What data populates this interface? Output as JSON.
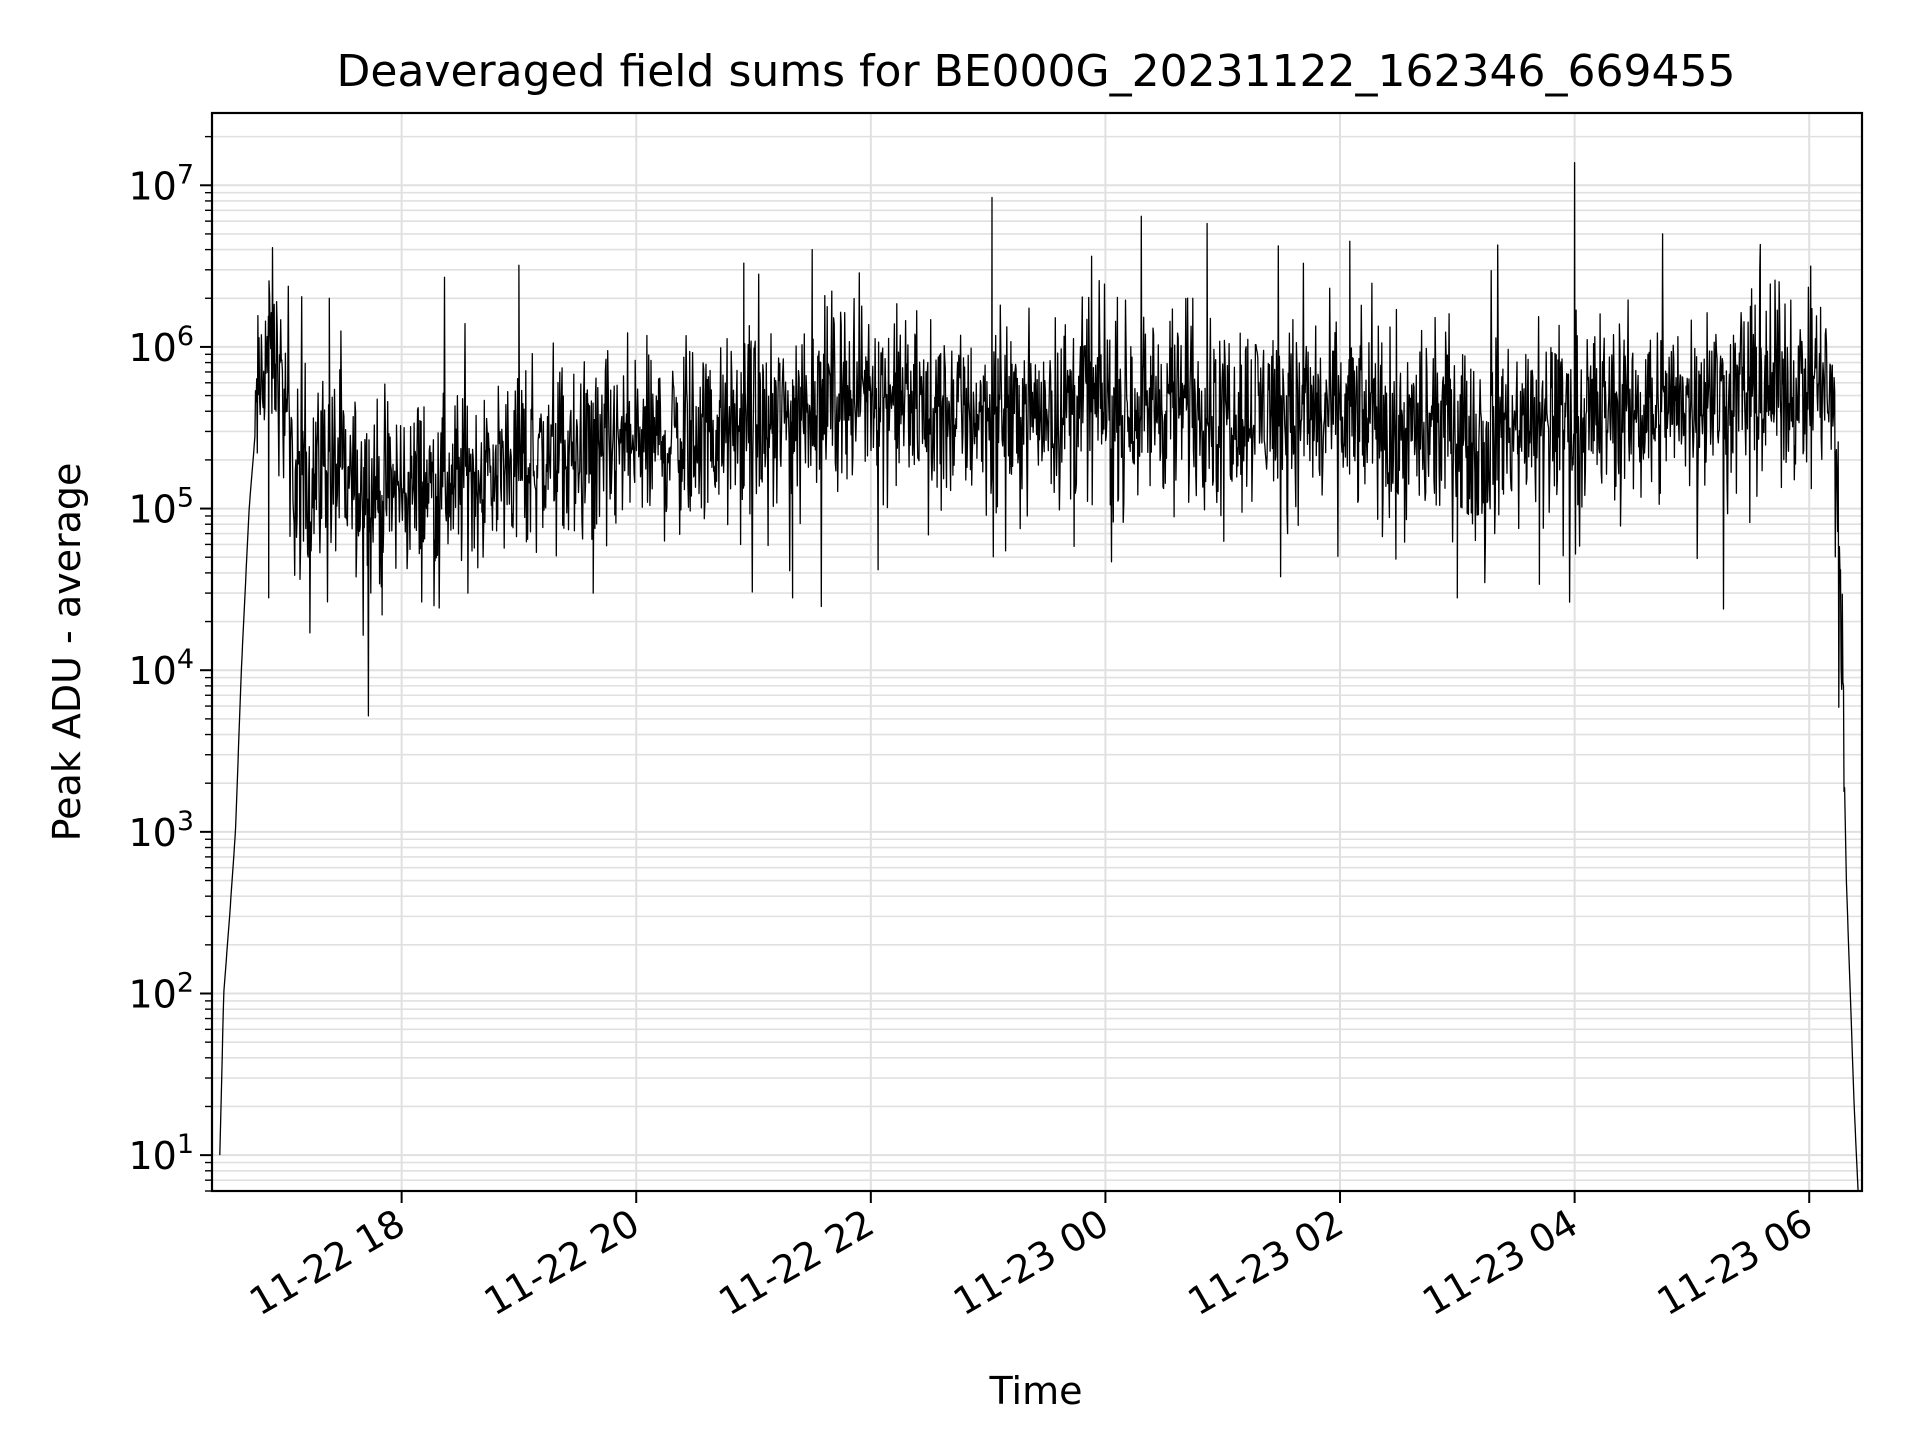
{
  "chart_data": {
    "type": "line",
    "title": "Deaveraged field sums for BE000G_20231122_162346_669455",
    "xlabel": "Time",
    "ylabel": "Peak ADU - average",
    "yscale": "log",
    "ylim": [
      6,
      28000000
    ],
    "xlim": [
      "2023-11-22 16:23",
      "2023-11-23 06:27"
    ],
    "grid": true,
    "line_color": "#000000",
    "grid_color": "#e0e0e0",
    "x_ticks": [
      {
        "value": "2023-11-22 18:00",
        "label": "11-22 18"
      },
      {
        "value": "2023-11-22 20:00",
        "label": "11-22 20"
      },
      {
        "value": "2023-11-22 22:00",
        "label": "11-22 22"
      },
      {
        "value": "2023-11-23 00:00",
        "label": "11-23 00"
      },
      {
        "value": "2023-11-23 02:00",
        "label": "11-23 02"
      },
      {
        "value": "2023-11-23 04:00",
        "label": "11-23 04"
      },
      {
        "value": "2023-11-23 06:00",
        "label": "11-23 06"
      }
    ],
    "y_ticks": [
      {
        "value": 10,
        "base": "10",
        "exp": "1"
      },
      {
        "value": 100,
        "base": "10",
        "exp": "2"
      },
      {
        "value": 1000,
        "base": "10",
        "exp": "3"
      },
      {
        "value": 10000,
        "base": "10",
        "exp": "4"
      },
      {
        "value": 100000,
        "base": "10",
        "exp": "5"
      },
      {
        "value": 1000000,
        "base": "10",
        "exp": "6"
      },
      {
        "value": 10000000,
        "base": "10",
        "exp": "7"
      }
    ],
    "series": [
      {
        "x": [
          "2023-11-22 16:27",
          "2023-11-22 16:29",
          "2023-11-22 16:32",
          "2023-11-22 16:35",
          "2023-11-22 16:38",
          "2023-11-22 16:42",
          "2023-11-22 16:46",
          "2023-11-22 16:50",
          "2023-11-22 16:54",
          "2023-11-22 16:58",
          "2023-11-22 17:02",
          "2023-11-22 17:06",
          "2023-11-22 17:10",
          "2023-11-22 17:15",
          "2023-11-22 17:20",
          "2023-11-22 17:30",
          "2023-11-22 17:40",
          "2023-11-22 17:50",
          "2023-11-22 18:00",
          "2023-11-22 18:30",
          "2023-11-22 19:00",
          "2023-11-22 19:30",
          "2023-11-22 20:00",
          "2023-11-22 20:30",
          "2023-11-22 21:00",
          "2023-11-22 21:15",
          "2023-11-22 21:30",
          "2023-11-22 22:00",
          "2023-11-22 22:30",
          "2023-11-22 23:00",
          "2023-11-22 23:30",
          "2023-11-23 00:00",
          "2023-11-23 00:30",
          "2023-11-23 01:00",
          "2023-11-23 01:30",
          "2023-11-23 02:00",
          "2023-11-23 02:30",
          "2023-11-23 03:00",
          "2023-11-23 03:30",
          "2023-11-23 04:00",
          "2023-11-23 04:30",
          "2023-11-23 05:00",
          "2023-11-23 05:30",
          "2023-11-23 06:00",
          "2023-11-23 06:10",
          "2023-11-23 06:14",
          "2023-11-23 06:17",
          "2023-11-23 06:19",
          "2023-11-23 06:21",
          "2023-11-23 06:23",
          "2023-11-23 06:25"
        ],
        "y": [
          10,
          100,
          300,
          1000,
          10000,
          100000,
          400000,
          900000,
          1000000,
          600000,
          300000,
          120000,
          150000,
          180000,
          200000,
          150000,
          130000,
          120000,
          130000,
          150000,
          200000,
          200000,
          250000,
          280000,
          300000,
          350000,
          500000,
          550000,
          400000,
          400000,
          420000,
          450000,
          450000,
          450000,
          400000,
          380000,
          300000,
          280000,
          300000,
          400000,
          420000,
          450000,
          550000,
          600000,
          550000,
          200000,
          10000,
          500,
          100,
          20,
          6
        ]
      }
    ],
    "spikes": [
      {
        "x": "2023-11-22 17:23",
        "y": 2000000
      },
      {
        "x": "2023-11-22 19:00",
        "y": 3200000
      },
      {
        "x": "2023-11-22 20:55",
        "y": 3300000
      },
      {
        "x": "2023-11-22 21:30",
        "y": 4000000
      },
      {
        "x": "2023-11-22 23:02",
        "y": 8400000
      },
      {
        "x": "2023-11-23 00:52",
        "y": 5800000
      },
      {
        "x": "2023-11-23 02:05",
        "y": 4500000
      },
      {
        "x": "2023-11-23 04:00",
        "y": 13800000
      },
      {
        "x": "2023-11-23 04:45",
        "y": 5000000
      },
      {
        "x": "2023-11-23 05:35",
        "y": 4300000
      }
    ],
    "dips": [
      {
        "x": "2023-11-22 16:52",
        "y": 28000
      },
      {
        "x": "2023-11-22 17:50",
        "y": 22000
      },
      {
        "x": "2023-11-22 19:38",
        "y": 30000
      },
      {
        "x": "2023-11-22 21:20",
        "y": 28000
      },
      {
        "x": "2023-11-23 03:00",
        "y": 28000
      },
      {
        "x": "2023-11-23 03:42",
        "y": 34000
      }
    ]
  }
}
